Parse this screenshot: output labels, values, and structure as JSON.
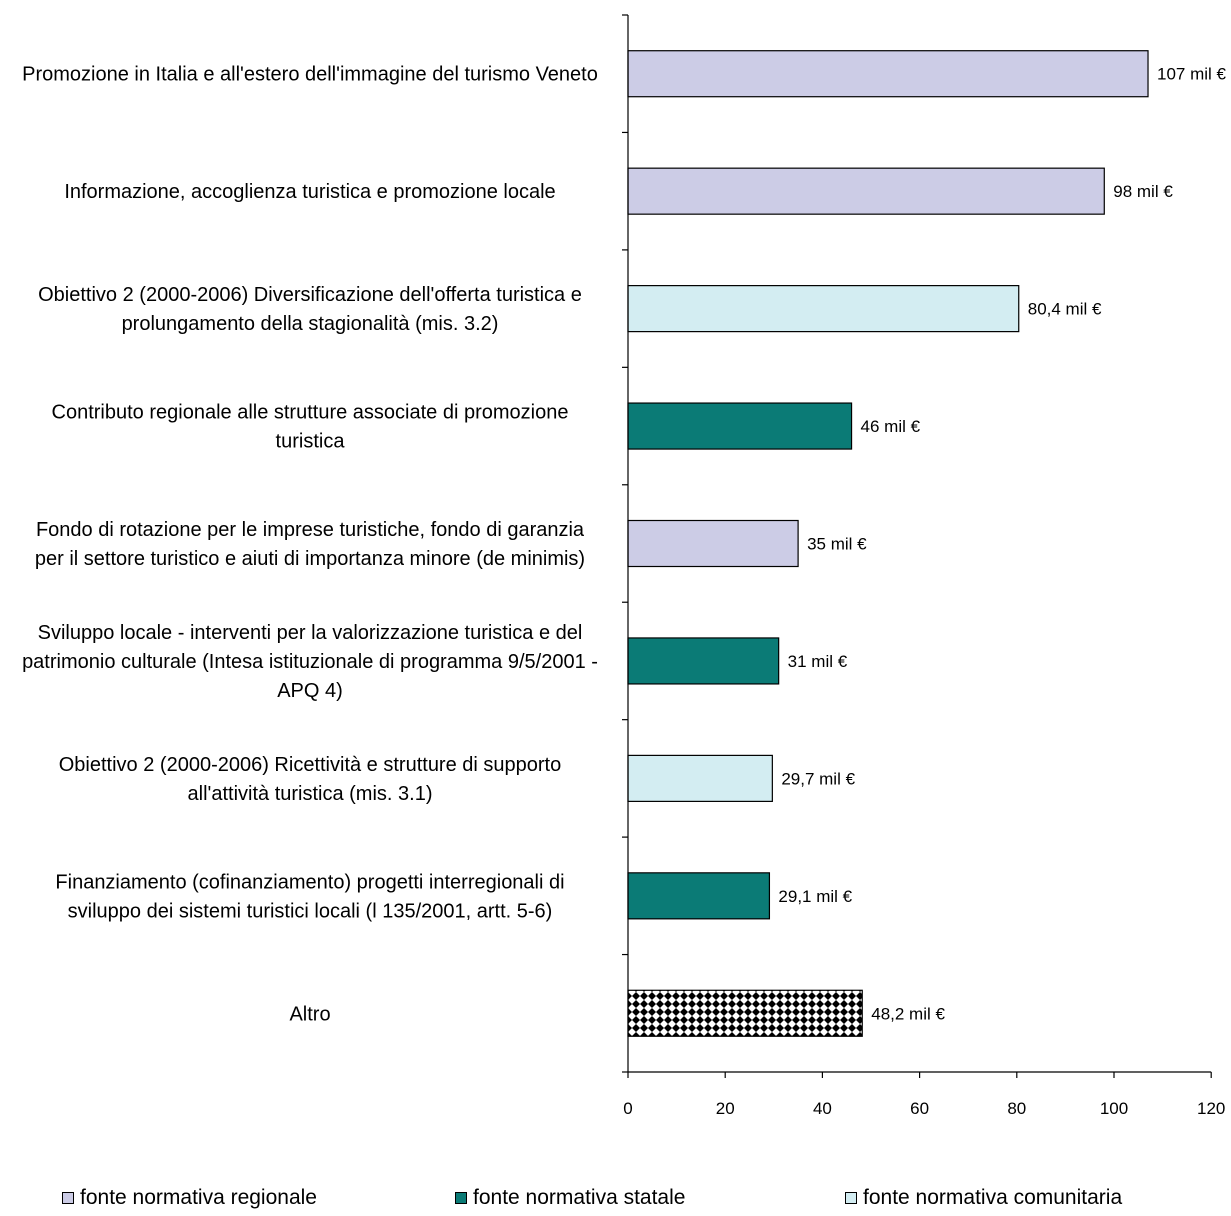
{
  "chart_data": {
    "type": "bar",
    "orientation": "horizontal",
    "categories": [
      [
        "Promozione in Italia e all'estero dell'immagine del turismo Veneto"
      ],
      [
        "Informazione, accoglienza turistica e promozione locale"
      ],
      [
        "Obiettivo 2 (2000-2006) Diversificazione dell'offerta turistica e",
        "prolungamento della stagionalità (mis. 3.2)"
      ],
      [
        "Contributo regionale alle strutture associate di promozione",
        "turistica"
      ],
      [
        "Fondo di rotazione per le imprese turistiche, fondo di garanzia",
        "per il settore turistico e aiuti di importanza minore (de minimis)"
      ],
      [
        "Sviluppo locale - interventi per la valorizzazione turistica e del",
        "patrimonio culturale (Intesa istituzionale di programma 9/5/2001 -",
        "APQ 4)"
      ],
      [
        "Obiettivo 2 (2000-2006) Ricettività e strutture di supporto",
        "all'attività turistica (mis. 3.1)"
      ],
      [
        "Finanziamento (cofinanziamento) progetti interregionali di",
        "sviluppo dei sistemi turistici locali (l 135/2001, artt. 5-6)"
      ],
      [
        "Altro"
      ]
    ],
    "values": [
      107,
      98,
      80.4,
      46,
      35,
      31,
      29.7,
      29.1,
      48.2
    ],
    "data_labels": [
      "107 mil €",
      "98 mil €",
      "80,4 mil €",
      "46 mil €",
      "35 mil €",
      "31 mil €",
      "29,7 mil €",
      "29,1 mil €",
      "48,2 mil €"
    ],
    "bar_source": [
      "regionale",
      "regionale",
      "comunitaria",
      "statale",
      "regionale",
      "statale",
      "comunitaria",
      "statale",
      "altro"
    ],
    "xlim": [
      0,
      120
    ],
    "xticks": [
      "0",
      "20",
      "40",
      "60",
      "80",
      "100",
      "120"
    ],
    "grid": false,
    "legend_position": "bottom",
    "legend": [
      {
        "key": "regionale",
        "label": "fonte normativa regionale",
        "color": "#CCCCE6"
      },
      {
        "key": "statale",
        "label": "fonte normativa statale",
        "color": "#0B7B76"
      },
      {
        "key": "comunitaria",
        "label": "fonte normativa comunitaria",
        "color": "#D3EDF2"
      }
    ],
    "altro_fill": "checkerboard"
  }
}
